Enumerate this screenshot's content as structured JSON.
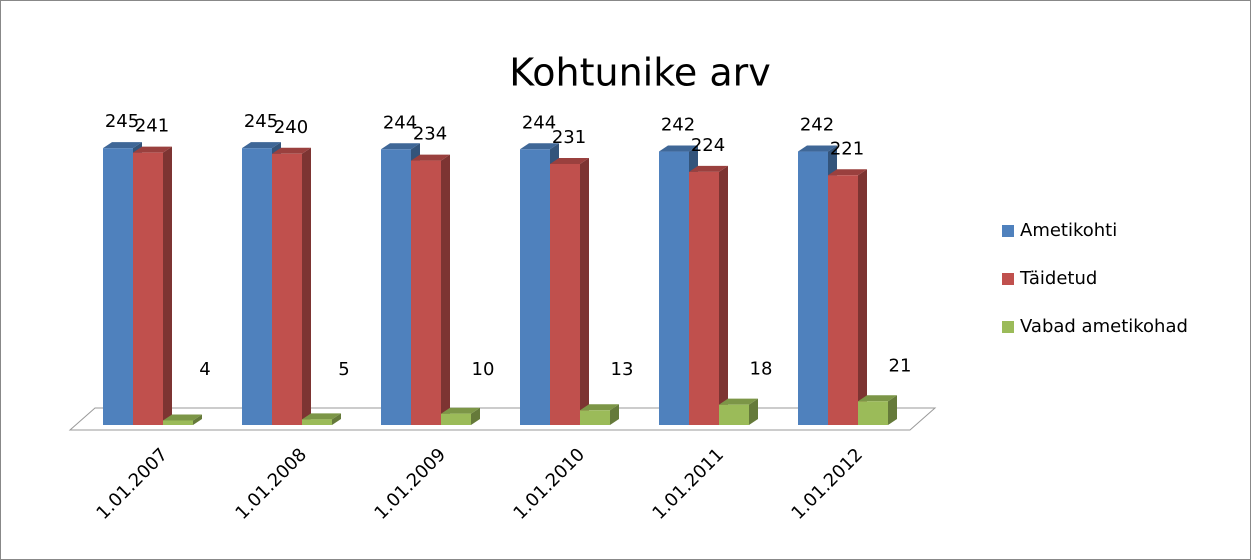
{
  "chart_data": {
    "type": "bar3d",
    "title": "Kohtunike arv",
    "categories": [
      "1.01.2007",
      "1.01.2008",
      "1.01.2009",
      "1.01.2010",
      "1.01.2011",
      "1.01.2012"
    ],
    "series": [
      {
        "name": "Ametikohti",
        "color": "#4f81bd",
        "values": [
          245,
          245,
          244,
          244,
          242,
          242
        ]
      },
      {
        "name": "Täidetud",
        "color": "#c0504d",
        "values": [
          241,
          240,
          234,
          231,
          224,
          221
        ]
      },
      {
        "name": "Vabad ametikohad",
        "color": "#9bbb59",
        "values": [
          4,
          5,
          10,
          13,
          18,
          21
        ]
      }
    ],
    "legend": "right"
  }
}
